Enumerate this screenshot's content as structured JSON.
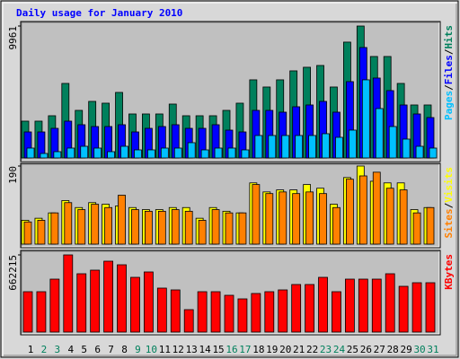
{
  "chart_data": [
    {
      "type": "bar",
      "title": "Daily usage for January 2010",
      "separator": "/",
      "ylim": [
        0,
        9961
      ],
      "yticks": [
        9961
      ],
      "series": [
        {
          "name": "Hits",
          "color": "#00805c",
          "values": [
            2780,
            2780,
            3187,
            5627,
            3593,
            4271,
            4136,
            4949,
            3322,
            3322,
            3322,
            4068,
            3187,
            3187,
            3187,
            3593,
            4136,
            5899,
            5356,
            5899,
            6576,
            6848,
            6983,
            5356,
            8746,
            9961,
            7661,
            7661,
            5627,
            4000,
            4000
          ]
        },
        {
          "name": "Files",
          "color": "#0000ff",
          "values": [
            1966,
            1966,
            2237,
            2780,
            2509,
            2373,
            2373,
            2509,
            1966,
            2237,
            2373,
            2509,
            2237,
            2237,
            2509,
            2102,
            1966,
            3593,
            3593,
            3458,
            3865,
            4000,
            4271,
            3458,
            5763,
            8339,
            6034,
            5085,
            4000,
            3322,
            3051
          ]
        },
        {
          "name": "Pages",
          "color": "#00c0ff",
          "values": [
            746,
            339,
            475,
            746,
            881,
            746,
            475,
            881,
            610,
            610,
            746,
            746,
            1153,
            610,
            746,
            746,
            610,
            1695,
            1695,
            1695,
            1695,
            1695,
            1831,
            1559,
            2102,
            5899,
            3729,
            2373,
            1424,
            881,
            746
          ]
        }
      ]
    },
    {
      "type": "bar",
      "separator": "/",
      "ylim": [
        0,
        190
      ],
      "yticks": [
        190
      ],
      "series": [
        {
          "name": "Visits",
          "color": "#ffff00",
          "values": [
            58,
            63,
            76,
            106,
            89,
            101,
            97,
            93,
            89,
            84,
            84,
            89,
            89,
            63,
            89,
            80,
            76,
            149,
            127,
            132,
            132,
            145,
            136,
            97,
            162,
            190,
            153,
            149,
            149,
            84,
            89
          ]
        },
        {
          "name": "Sites",
          "color": "#ff8000",
          "values": [
            54,
            58,
            76,
            101,
            84,
            97,
            89,
            119,
            84,
            80,
            80,
            84,
            80,
            58,
            84,
            76,
            76,
            145,
            123,
            127,
            123,
            127,
            123,
            89,
            158,
            166,
            175,
            136,
            132,
            76,
            89
          ]
        }
      ]
    },
    {
      "type": "bar",
      "ylim": [
        0,
        662215
      ],
      "yticks": [
        662215
      ],
      "categories": [
        "1",
        "2",
        "3",
        "4",
        "5",
        "6",
        "7",
        "8",
        "9",
        "10",
        "11",
        "12",
        "13",
        "14",
        "15",
        "16",
        "17",
        "18",
        "19",
        "20",
        "21",
        "22",
        "23",
        "24",
        "25",
        "26",
        "27",
        "28",
        "29",
        "30",
        "31"
      ],
      "category_colors": [
        "#000000",
        "#00805c",
        "#00805c",
        "#000000",
        "#000000",
        "#000000",
        "#000000",
        "#000000",
        "#00805c",
        "#00805c",
        "#000000",
        "#000000",
        "#000000",
        "#000000",
        "#000000",
        "#00805c",
        "#00805c",
        "#000000",
        "#000000",
        "#000000",
        "#000000",
        "#000000",
        "#00805c",
        "#00805c",
        "#000000",
        "#000000",
        "#000000",
        "#000000",
        "#000000",
        "#00805c",
        "#00805c"
      ],
      "series": [
        {
          "name": "KBytes",
          "color": "#ff0000",
          "values": [
            346500,
            346500,
            454300,
            662215,
            500500,
            531300,
            608300,
            577500,
            469700,
            515900,
            377300,
            361900,
            192500,
            346500,
            346500,
            315700,
            284900,
            331100,
            346500,
            361900,
            408100,
            408100,
            469700,
            346500,
            454300,
            454300,
            454300,
            500500,
            392700,
            423500,
            423500
          ]
        }
      ]
    }
  ]
}
